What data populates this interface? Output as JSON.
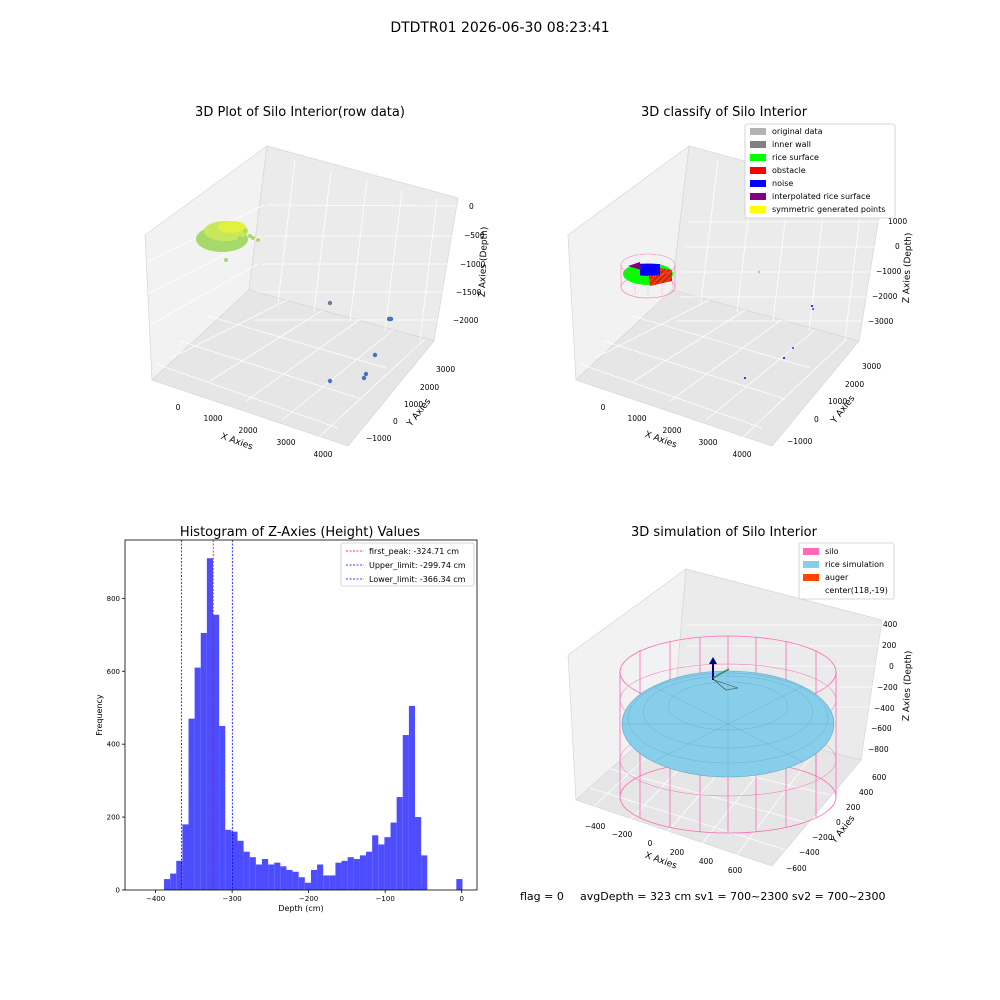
{
  "suptitle": "DTDTR01 2026-06-30 08:23:41",
  "footer": {
    "flag": "flag = 0",
    "stats": "avgDepth = 323 cm  sv1 = 700~2300  sv2 = 700~2300"
  },
  "chart_data": [
    {
      "type": "scatter",
      "title": "3D Plot of Silo Interior(row data)",
      "xlabel": "X Axies",
      "ylabel": "Y Axies",
      "zlabel": "Z Axies (Depth)",
      "x_ticks": [
        "0",
        "1000",
        "2000",
        "3000",
        "4000"
      ],
      "y_ticks": [
        "3000",
        "2000",
        "1000",
        "0",
        "−1000"
      ],
      "z_ticks": [
        "0",
        "−500",
        "−1000",
        "−1500",
        "−2000"
      ],
      "color": "#a6d96a"
    },
    {
      "type": "scatter",
      "title": "3D classify of Silo Interior",
      "xlabel": "X Axies",
      "ylabel": "Y Axies",
      "zlabel": "Z Axies (Depth)",
      "x_ticks": [
        "0",
        "1000",
        "2000",
        "3000",
        "4000"
      ],
      "y_ticks": [
        "3000",
        "2000",
        "1000",
        "0",
        "−1000"
      ],
      "z_ticks": [
        "1000",
        "0",
        "−1000",
        "−2000",
        "−3000"
      ],
      "legend": [
        {
          "label": "original data",
          "color": "#b3b3b3"
        },
        {
          "label": "inner wall",
          "color": "#808080"
        },
        {
          "label": "rice surface",
          "color": "#00ff00"
        },
        {
          "label": "obstacle",
          "color": "#ff0000"
        },
        {
          "label": "noise",
          "color": "#0000ff"
        },
        {
          "label": "interpolated rice surface",
          "color": "#800080"
        },
        {
          "label": "symmetric generated points",
          "color": "#ffff00"
        }
      ]
    },
    {
      "type": "bar",
      "title": "Histogram of Z-Axies (Height) Values",
      "xlabel": "Depth (cm)",
      "ylabel": "Frequency",
      "xlim": [
        -440,
        20
      ],
      "ylim": [
        0,
        960
      ],
      "x_ticks": [
        -400,
        -300,
        -200,
        -100,
        0
      ],
      "x_tick_labels": [
        "−400",
        "−300",
        "−200",
        "−100",
        "0"
      ],
      "y_ticks": [
        0,
        200,
        400,
        600,
        800
      ],
      "y_tick_labels": [
        "0",
        "200",
        "400",
        "600",
        "800"
      ],
      "bar_color": "#4d4dff",
      "bin_width": 8,
      "bins": [
        [
          -385,
          30
        ],
        [
          -377,
          45
        ],
        [
          -369,
          80
        ],
        [
          -361,
          180
        ],
        [
          -353,
          470
        ],
        [
          -345,
          610
        ],
        [
          -337,
          705
        ],
        [
          -329,
          910
        ],
        [
          -321,
          755
        ],
        [
          -313,
          450
        ],
        [
          -305,
          165
        ],
        [
          -297,
          160
        ],
        [
          -289,
          135
        ],
        [
          -281,
          105
        ],
        [
          -273,
          90
        ],
        [
          -265,
          70
        ],
        [
          -257,
          85
        ],
        [
          -249,
          70
        ],
        [
          -241,
          75
        ],
        [
          -233,
          65
        ],
        [
          -225,
          55
        ],
        [
          -217,
          50
        ],
        [
          -209,
          35
        ],
        [
          -201,
          20
        ],
        [
          -193,
          55
        ],
        [
          -185,
          70
        ],
        [
          -177,
          40
        ],
        [
          -169,
          40
        ],
        [
          -161,
          75
        ],
        [
          -153,
          80
        ],
        [
          -145,
          90
        ],
        [
          -137,
          85
        ],
        [
          -129,
          95
        ],
        [
          -121,
          105
        ],
        [
          -113,
          150
        ],
        [
          -105,
          125
        ],
        [
          -97,
          145
        ],
        [
          -89,
          185
        ],
        [
          -81,
          255
        ],
        [
          -73,
          425
        ],
        [
          -65,
          505
        ],
        [
          -57,
          200
        ],
        [
          -49,
          95
        ],
        [
          -3,
          30
        ]
      ],
      "vlines": [
        {
          "name": "first_peak",
          "label": "first_peak: -324.71 cm",
          "x": -324.71,
          "color": "#ff0000"
        },
        {
          "name": "upper_limit",
          "label": "Upper_limit: -299.74 cm",
          "x": -299.74,
          "color": "#0000ff"
        },
        {
          "name": "lower_limit",
          "label": "Lower_limit: -366.34 cm",
          "x": -366.34,
          "color": "#0000ff"
        }
      ],
      "legend_position": "upper right"
    },
    {
      "type": "surface",
      "title": "3D simulation of Silo Interior",
      "xlabel": "X Axies",
      "ylabel": "Y Axies",
      "zlabel": "Z Axies (Depth)",
      "x_ticks": [
        "−400",
        "−200",
        "0",
        "200",
        "400",
        "600"
      ],
      "y_ticks": [
        "600",
        "400",
        "200",
        "0",
        "−200",
        "−400",
        "−600"
      ],
      "z_ticks": [
        "400",
        "200",
        "0",
        "−200",
        "−400",
        "−600",
        "−800"
      ],
      "legend": [
        {
          "label": "silo",
          "color": "#ff69b4"
        },
        {
          "label": "rice simulation",
          "color": "#87ceeb"
        },
        {
          "label": "auger",
          "color": "#ff4500"
        },
        {
          "label": "center(118,-19)",
          "color": ""
        }
      ]
    }
  ]
}
